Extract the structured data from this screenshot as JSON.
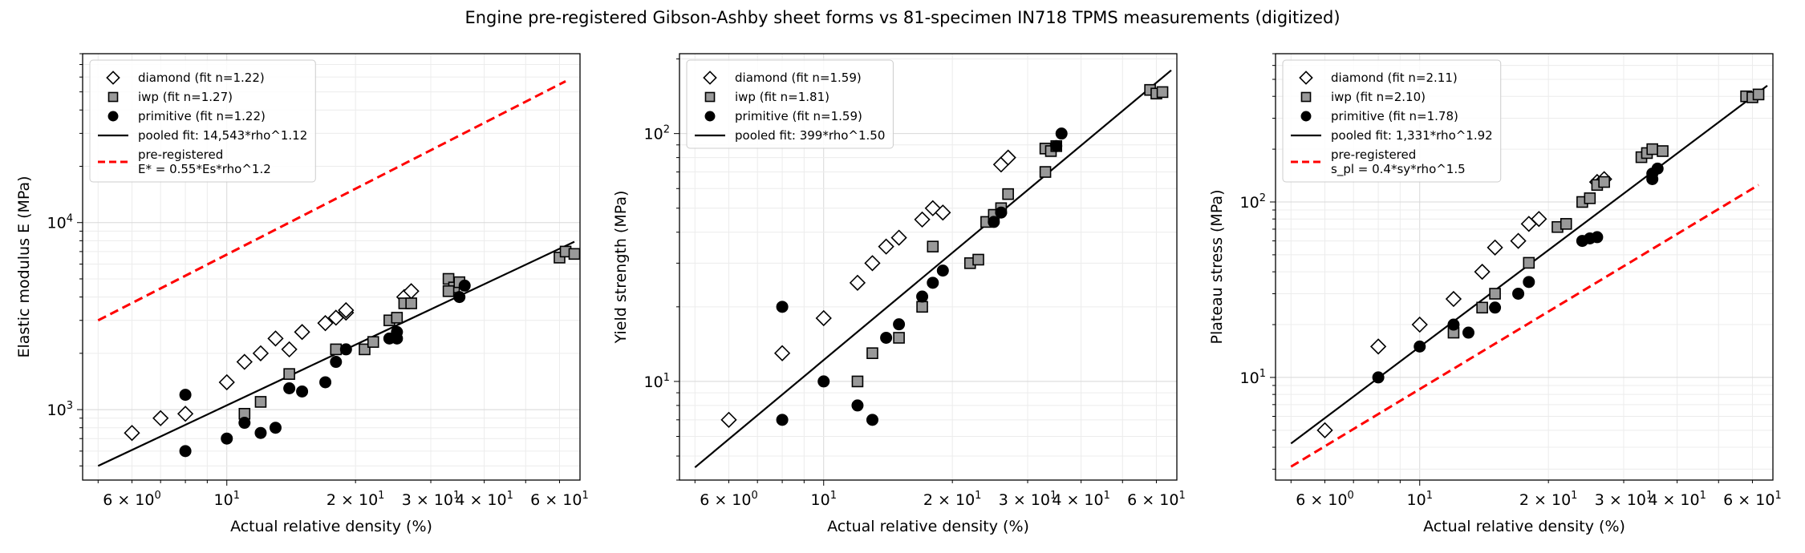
{
  "title": "Engine pre-registered Gibson-Ashby sheet forms vs 81-specimen IN718 TPMS measurements (digitized)",
  "chart_data": [
    {
      "type": "scatter",
      "xscale": "log",
      "yscale": "log",
      "xlabel": "Actual relative density (%)",
      "ylabel": "Elastic modulus E (MPa)",
      "xlim": [
        4.6,
        67
      ],
      "ylim": [
        420,
        80000
      ],
      "xticks": [
        {
          "value": 6,
          "base": "6 × 10",
          "exp": "0"
        },
        {
          "value": 10,
          "base": "10",
          "exp": "1"
        },
        {
          "value": 20,
          "base": "2 × 10",
          "exp": "1"
        },
        {
          "value": 30,
          "base": "3 × 10",
          "exp": "1"
        },
        {
          "value": 40,
          "base": "4 × 10",
          "exp": "1"
        },
        {
          "value": 60,
          "base": "6 × 10",
          "exp": "1"
        }
      ],
      "yticks": [
        {
          "value": 1000,
          "base": "10",
          "exp": "3"
        },
        {
          "value": 10000,
          "base": "10",
          "exp": "4"
        }
      ],
      "grid": true,
      "legend_position": "upper-left",
      "series": [
        {
          "name": "diamond (fit n=1.22)",
          "marker": "diamond",
          "fill": "#ffffff",
          "stroke": "#000000",
          "points": [
            [
              6,
              750
            ],
            [
              7,
              900
            ],
            [
              8,
              950
            ],
            [
              10,
              1400
            ],
            [
              11,
              1800
            ],
            [
              12,
              2000
            ],
            [
              13,
              2400
            ],
            [
              14,
              2100
            ],
            [
              15,
              2600
            ],
            [
              17,
              2900
            ],
            [
              18,
              3100
            ],
            [
              19,
              3300
            ],
            [
              19,
              3400
            ],
            [
              26,
              4000
            ],
            [
              27,
              4300
            ]
          ]
        },
        {
          "name": "iwp (fit n=1.27)",
          "marker": "square",
          "fill": "#999999",
          "stroke": "#000000",
          "points": [
            [
              11,
              950
            ],
            [
              12,
              1100
            ],
            [
              14,
              1550
            ],
            [
              18,
              2100
            ],
            [
              21,
              2100
            ],
            [
              22,
              2300
            ],
            [
              24,
              3000
            ],
            [
              25,
              3100
            ],
            [
              26,
              3700
            ],
            [
              27,
              3700
            ],
            [
              33,
              5000
            ],
            [
              34,
              4500
            ],
            [
              35,
              4800
            ],
            [
              33,
              4300
            ],
            [
              60,
              6500
            ],
            [
              62,
              7000
            ],
            [
              65,
              6800
            ]
          ]
        },
        {
          "name": "primitive (fit n=1.22)",
          "marker": "circle",
          "fill": "#000000",
          "stroke": "#000000",
          "points": [
            [
              8,
              1200
            ],
            [
              8,
              600
            ],
            [
              10,
              700
            ],
            [
              11,
              850
            ],
            [
              12,
              750
            ],
            [
              13,
              800
            ],
            [
              14,
              1300
            ],
            [
              15,
              1250
            ],
            [
              17,
              1400
            ],
            [
              18,
              1800
            ],
            [
              19,
              2100
            ],
            [
              24,
              2400
            ],
            [
              25,
              2400
            ],
            [
              25,
              2600
            ],
            [
              35,
              4000
            ],
            [
              36,
              4600
            ]
          ]
        }
      ],
      "lines": [
        {
          "name": "pooled fit: 14,543*rho^1.12",
          "color": "#000000",
          "dash": "solid",
          "x": [
            5,
            65
          ],
          "y": [
            500,
            7900
          ]
        },
        {
          "name": "pre-registered\nE* = 0.55*Es*rho^1.2",
          "color": "#ff0000",
          "dash": "dashed",
          "x": [
            5,
            62
          ],
          "y": [
            3000,
            57000
          ]
        }
      ]
    },
    {
      "type": "scatter",
      "xscale": "log",
      "yscale": "log",
      "xlabel": "Actual relative density (%)",
      "ylabel": "Yield strength (MPa)",
      "xlim": [
        4.6,
        67
      ],
      "ylim": [
        4.0,
        210
      ],
      "xticks": [
        {
          "value": 6,
          "base": "6 × 10",
          "exp": "0"
        },
        {
          "value": 10,
          "base": "10",
          "exp": "1"
        },
        {
          "value": 20,
          "base": "2 × 10",
          "exp": "1"
        },
        {
          "value": 30,
          "base": "3 × 10",
          "exp": "1"
        },
        {
          "value": 40,
          "base": "4 × 10",
          "exp": "1"
        },
        {
          "value": 60,
          "base": "6 × 10",
          "exp": "1"
        }
      ],
      "yticks": [
        {
          "value": 10,
          "base": "10",
          "exp": "1"
        },
        {
          "value": 100,
          "base": "10",
          "exp": "2"
        }
      ],
      "grid": true,
      "legend_position": "upper-left",
      "series": [
        {
          "name": "diamond (fit n=1.59)",
          "marker": "diamond",
          "fill": "#ffffff",
          "stroke": "#000000",
          "points": [
            [
              6,
              7
            ],
            [
              8,
              13
            ],
            [
              10,
              18
            ],
            [
              12,
              25
            ],
            [
              13,
              30
            ],
            [
              14,
              35
            ],
            [
              15,
              38
            ],
            [
              17,
              45
            ],
            [
              18,
              50
            ],
            [
              19,
              48
            ],
            [
              26,
              75
            ],
            [
              27,
              80
            ]
          ]
        },
        {
          "name": "iwp (fit n=1.81)",
          "marker": "square",
          "fill": "#999999",
          "stroke": "#000000",
          "points": [
            [
              12,
              10
            ],
            [
              13,
              13
            ],
            [
              15,
              15
            ],
            [
              17,
              20
            ],
            [
              18,
              35
            ],
            [
              22,
              30
            ],
            [
              23,
              31
            ],
            [
              24,
              44
            ],
            [
              25,
              47
            ],
            [
              26,
              50
            ],
            [
              27,
              57
            ],
            [
              33,
              70
            ],
            [
              33,
              87
            ],
            [
              34,
              85
            ],
            [
              35,
              89
            ],
            [
              58,
              150
            ],
            [
              60,
              145
            ],
            [
              62,
              147
            ]
          ]
        },
        {
          "name": "primitive (fit n=1.59)",
          "marker": "circle",
          "fill": "#000000",
          "stroke": "#000000",
          "points": [
            [
              8,
              7
            ],
            [
              8,
              20
            ],
            [
              10,
              10
            ],
            [
              12,
              8
            ],
            [
              13,
              7
            ],
            [
              14,
              15
            ],
            [
              15,
              17
            ],
            [
              17,
              22
            ],
            [
              18,
              25
            ],
            [
              19,
              28
            ],
            [
              25,
              44
            ],
            [
              26,
              48
            ],
            [
              35,
              89
            ],
            [
              36,
              100
            ]
          ]
        }
      ],
      "lines": [
        {
          "name": "pooled fit: 399*rho^1.50",
          "color": "#000000",
          "dash": "solid",
          "x": [
            5,
            65
          ],
          "y": [
            4.5,
            180
          ]
        }
      ]
    },
    {
      "type": "scatter",
      "xscale": "log",
      "yscale": "log",
      "xlabel": "Actual relative density (%)",
      "ylabel": "Plateau stress (MPa)",
      "xlim": [
        4.6,
        67
      ],
      "ylim": [
        2.6,
        700
      ],
      "xticks": [
        {
          "value": 6,
          "base": "6 × 10",
          "exp": "0"
        },
        {
          "value": 10,
          "base": "10",
          "exp": "1"
        },
        {
          "value": 20,
          "base": "2 × 10",
          "exp": "1"
        },
        {
          "value": 30,
          "base": "3 × 10",
          "exp": "1"
        },
        {
          "value": 40,
          "base": "4 × 10",
          "exp": "1"
        },
        {
          "value": 60,
          "base": "6 × 10",
          "exp": "1"
        }
      ],
      "yticks": [
        {
          "value": 10,
          "base": "10",
          "exp": "1"
        },
        {
          "value": 100,
          "base": "10",
          "exp": "2"
        }
      ],
      "grid": true,
      "legend_position": "upper-left",
      "series": [
        {
          "name": "diamond (fit n=2.11)",
          "marker": "diamond",
          "fill": "#ffffff",
          "stroke": "#000000",
          "points": [
            [
              6,
              5
            ],
            [
              8,
              15
            ],
            [
              10,
              20
            ],
            [
              12,
              28
            ],
            [
              14,
              40
            ],
            [
              15,
              55
            ],
            [
              17,
              60
            ],
            [
              18,
              75
            ],
            [
              19,
              80
            ],
            [
              26,
              130
            ],
            [
              27,
              135
            ]
          ]
        },
        {
          "name": "iwp (fit n=2.10)",
          "marker": "square",
          "fill": "#999999",
          "stroke": "#000000",
          "points": [
            [
              12,
              18
            ],
            [
              14,
              25
            ],
            [
              15,
              30
            ],
            [
              18,
              45
            ],
            [
              21,
              72
            ],
            [
              22,
              75
            ],
            [
              24,
              100
            ],
            [
              25,
              105
            ],
            [
              26,
              125
            ],
            [
              27,
              130
            ],
            [
              33,
              180
            ],
            [
              34,
              190
            ],
            [
              35,
              200
            ],
            [
              37,
              195
            ],
            [
              58,
              400
            ],
            [
              60,
              395
            ],
            [
              62,
              410
            ]
          ]
        },
        {
          "name": "primitive (fit n=1.78)",
          "marker": "circle",
          "fill": "#000000",
          "stroke": "#000000",
          "points": [
            [
              8,
              10
            ],
            [
              10,
              15
            ],
            [
              12,
              20
            ],
            [
              13,
              18
            ],
            [
              15,
              25
            ],
            [
              17,
              30
            ],
            [
              18,
              35
            ],
            [
              24,
              60
            ],
            [
              25,
              62
            ],
            [
              26,
              63
            ],
            [
              35,
              135
            ],
            [
              35,
              145
            ],
            [
              36,
              155
            ]
          ]
        }
      ],
      "lines": [
        {
          "name": "pooled fit: 1,331*rho^1.92",
          "color": "#000000",
          "dash": "solid",
          "x": [
            5,
            65
          ],
          "y": [
            4.2,
            460
          ]
        },
        {
          "name": "pre-registered\ns_pl = 0.4*sy*rho^1.5",
          "color": "#ff0000",
          "dash": "dashed",
          "x": [
            5,
            62
          ],
          "y": [
            3.1,
            125
          ]
        }
      ]
    }
  ]
}
